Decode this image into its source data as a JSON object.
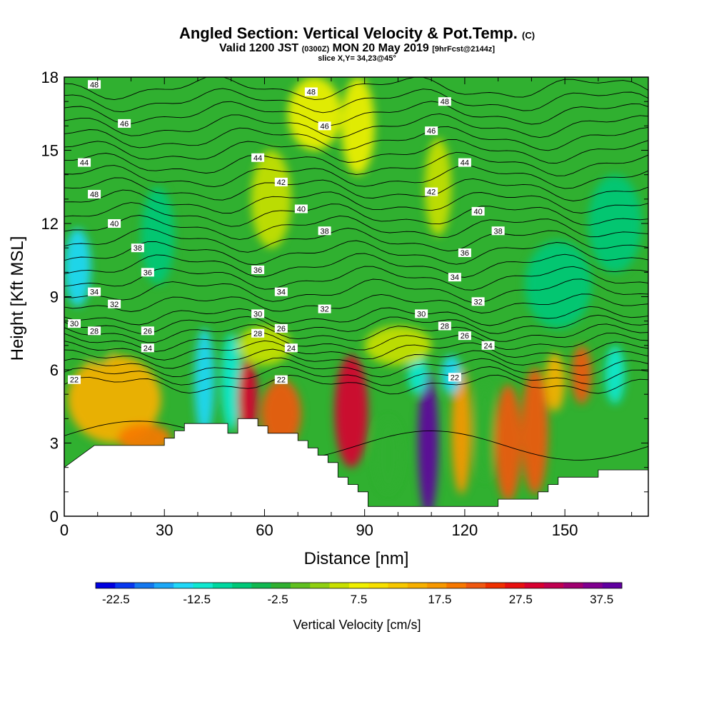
{
  "title": "Angled Section: Vertical Velocity & Pot.Temp.",
  "title_unit": "(C)",
  "subtitle_valid": "Valid 1200 JST",
  "subtitle_utc": "(0300Z)",
  "subtitle_date": "MON 20 May 2019",
  "subtitle_fcst": "[9hrFcst@2144z]",
  "slice": "slice X,Y= 34,23@45°",
  "chart_data": {
    "type": "heatmap",
    "xlabel": "Distance [nm]",
    "ylabel": "Height [Kft MSL]",
    "xlim": [
      0,
      175
    ],
    "ylim": [
      0,
      18
    ],
    "x_ticks": [
      0,
      30,
      60,
      90,
      120,
      150
    ],
    "y_ticks": [
      0,
      3,
      6,
      9,
      12,
      15,
      18
    ],
    "colorbar": {
      "title": "Vertical Velocity [cm/s]",
      "tick_labels": [
        "-22.5",
        "-12.5",
        "-2.5",
        "7.5",
        "17.5",
        "27.5",
        "37.5"
      ],
      "tick_values": [
        -22.5,
        -12.5,
        -2.5,
        7.5,
        17.5,
        27.5,
        37.5
      ],
      "range": [
        -25,
        40
      ],
      "colors": [
        "#0000e0",
        "#0838f0",
        "#1478f0",
        "#1ca8f8",
        "#20d8f8",
        "#10e8d0",
        "#00d8a0",
        "#00c878",
        "#10b850",
        "#30b030",
        "#60c020",
        "#90d010",
        "#c8e000",
        "#f0f000",
        "#f8e000",
        "#f8c800",
        "#f8b000",
        "#f89800",
        "#f87800",
        "#f05810",
        "#f03000",
        "#e81010",
        "#d80030",
        "#c00050",
        "#a00070",
        "#800090",
        "#6000a0"
      ]
    },
    "terrain": [
      [
        0,
        2.0
      ],
      [
        3,
        2.3
      ],
      [
        6,
        2.6
      ],
      [
        9,
        2.9
      ],
      [
        30,
        2.9
      ],
      [
        30,
        3.2
      ],
      [
        33,
        3.2
      ],
      [
        33,
        3.5
      ],
      [
        36,
        3.5
      ],
      [
        36,
        3.8
      ],
      [
        49,
        3.8
      ],
      [
        49,
        3.4
      ],
      [
        52,
        3.4
      ],
      [
        52,
        4.0
      ],
      [
        58,
        4.0
      ],
      [
        58,
        3.7
      ],
      [
        61,
        3.7
      ],
      [
        61,
        3.4
      ],
      [
        70,
        3.4
      ],
      [
        70,
        3.1
      ],
      [
        73,
        3.1
      ],
      [
        73,
        2.8
      ],
      [
        76,
        2.8
      ],
      [
        76,
        2.5
      ],
      [
        79,
        2.5
      ],
      [
        79,
        2.2
      ],
      [
        82,
        2.2
      ],
      [
        82,
        1.6
      ],
      [
        85,
        1.6
      ],
      [
        85,
        1.3
      ],
      [
        88,
        1.3
      ],
      [
        88,
        1.0
      ],
      [
        91,
        1.0
      ],
      [
        91,
        0.4
      ],
      [
        130,
        0.4
      ],
      [
        130,
        0.7
      ],
      [
        142,
        0.7
      ],
      [
        142,
        1.0
      ],
      [
        145,
        1.0
      ],
      [
        145,
        1.3
      ],
      [
        148,
        1.3
      ],
      [
        148,
        1.6
      ],
      [
        160,
        1.6
      ],
      [
        160,
        1.9
      ],
      [
        175,
        1.9
      ]
    ],
    "vv_cells": [
      {
        "x": 4,
        "y": 10.2,
        "rx": 4,
        "ry": 1.6,
        "v": -15
      },
      {
        "x": 42,
        "y": 5.5,
        "rx": 3,
        "ry": 2.2,
        "v": -14
      },
      {
        "x": 50,
        "y": 5.5,
        "rx": 3,
        "ry": 2.0,
        "v": -12
      },
      {
        "x": 15,
        "y": 4.8,
        "rx": 14,
        "ry": 1.8,
        "v": 15
      },
      {
        "x": 24,
        "y": 3.2,
        "rx": 8,
        "ry": 0.6,
        "v": 20
      },
      {
        "x": 55,
        "y": 4.8,
        "rx": 3,
        "ry": 1.6,
        "v": 30
      },
      {
        "x": 65,
        "y": 4.2,
        "rx": 6,
        "ry": 1.4,
        "v": 22
      },
      {
        "x": 86,
        "y": 4.3,
        "rx": 5,
        "ry": 2.3,
        "v": 28
      },
      {
        "x": 97,
        "y": 2.5,
        "rx": 4,
        "ry": 1.5,
        "v": -3
      },
      {
        "x": 109,
        "y": 3.0,
        "rx": 3,
        "ry": 3.0,
        "v": 38
      },
      {
        "x": 119,
        "y": 3.5,
        "rx": 3,
        "ry": 2.6,
        "v": 18
      },
      {
        "x": 126,
        "y": 3.5,
        "rx": 3,
        "ry": 2.0,
        "v": -3
      },
      {
        "x": 133,
        "y": 3.0,
        "rx": 4,
        "ry": 2.4,
        "v": 22
      },
      {
        "x": 141,
        "y": 3.5,
        "rx": 4,
        "ry": 2.6,
        "v": 22
      },
      {
        "x": 155,
        "y": 5.8,
        "rx": 3,
        "ry": 1.2,
        "v": 22
      },
      {
        "x": 147,
        "y": 5.5,
        "rx": 3,
        "ry": 1.2,
        "v": 15
      },
      {
        "x": 165,
        "y": 5.8,
        "rx": 3,
        "ry": 1.2,
        "v": -12
      },
      {
        "x": 116,
        "y": 5.8,
        "rx": 3,
        "ry": 0.8,
        "v": -14
      },
      {
        "x": 106,
        "y": 5.8,
        "rx": 3,
        "ry": 0.8,
        "v": -12
      },
      {
        "x": 75,
        "y": 16.5,
        "rx": 8,
        "ry": 1.5,
        "v": 8
      },
      {
        "x": 88,
        "y": 16.0,
        "rx": 5,
        "ry": 2.0,
        "v": 8
      },
      {
        "x": 112,
        "y": 13.5,
        "rx": 4,
        "ry": 2.0,
        "v": 6
      },
      {
        "x": 62,
        "y": 13.0,
        "rx": 6,
        "ry": 2.0,
        "v": 6
      },
      {
        "x": 28,
        "y": 11.5,
        "rx": 5,
        "ry": 2.0,
        "v": -7
      },
      {
        "x": 148,
        "y": 9.5,
        "rx": 10,
        "ry": 1.8,
        "v": -7
      },
      {
        "x": 165,
        "y": 12.0,
        "rx": 8,
        "ry": 2.0,
        "v": -6
      },
      {
        "x": 10,
        "y": 7.0,
        "rx": 5,
        "ry": 0.8,
        "v": -3
      },
      {
        "x": 60,
        "y": 7.0,
        "rx": 8,
        "ry": 0.8,
        "v": 6
      },
      {
        "x": 100,
        "y": 7.0,
        "rx": 10,
        "ry": 0.8,
        "v": 6
      }
    ],
    "theta_labels": [
      {
        "x": 9,
        "y": 17.7,
        "text": "48"
      },
      {
        "x": 18,
        "y": 16.1,
        "text": "46"
      },
      {
        "x": 6,
        "y": 14.5,
        "text": "44"
      },
      {
        "x": 9,
        "y": 13.2,
        "text": "48"
      },
      {
        "x": 15,
        "y": 12.0,
        "text": "40"
      },
      {
        "x": 22,
        "y": 11.0,
        "text": "38"
      },
      {
        "x": 25,
        "y": 10.0,
        "text": "36"
      },
      {
        "x": 9,
        "y": 9.2,
        "text": "34"
      },
      {
        "x": 15,
        "y": 8.7,
        "text": "32"
      },
      {
        "x": 3,
        "y": 7.9,
        "text": "30"
      },
      {
        "x": 9,
        "y": 7.6,
        "text": "28"
      },
      {
        "x": 25,
        "y": 7.6,
        "text": "26"
      },
      {
        "x": 25,
        "y": 6.9,
        "text": "24"
      },
      {
        "x": 3,
        "y": 5.6,
        "text": "22"
      },
      {
        "x": 74,
        "y": 17.4,
        "text": "48"
      },
      {
        "x": 78,
        "y": 16.0,
        "text": "46"
      },
      {
        "x": 58,
        "y": 14.7,
        "text": "44"
      },
      {
        "x": 65,
        "y": 13.7,
        "text": "42"
      },
      {
        "x": 71,
        "y": 12.6,
        "text": "40"
      },
      {
        "x": 78,
        "y": 11.7,
        "text": "38"
      },
      {
        "x": 58,
        "y": 10.1,
        "text": "36"
      },
      {
        "x": 65,
        "y": 9.2,
        "text": "34"
      },
      {
        "x": 78,
        "y": 8.5,
        "text": "32"
      },
      {
        "x": 58,
        "y": 8.3,
        "text": "30"
      },
      {
        "x": 58,
        "y": 7.5,
        "text": "28"
      },
      {
        "x": 65,
        "y": 7.7,
        "text": "26"
      },
      {
        "x": 68,
        "y": 6.9,
        "text": "24"
      },
      {
        "x": 65,
        "y": 5.6,
        "text": "22"
      },
      {
        "x": 114,
        "y": 17.0,
        "text": "48"
      },
      {
        "x": 110,
        "y": 15.8,
        "text": "46"
      },
      {
        "x": 120,
        "y": 14.5,
        "text": "44"
      },
      {
        "x": 110,
        "y": 13.3,
        "text": "42"
      },
      {
        "x": 124,
        "y": 12.5,
        "text": "40"
      },
      {
        "x": 130,
        "y": 11.7,
        "text": "38"
      },
      {
        "x": 120,
        "y": 10.8,
        "text": "36"
      },
      {
        "x": 117,
        "y": 9.8,
        "text": "34"
      },
      {
        "x": 124,
        "y": 8.8,
        "text": "32"
      },
      {
        "x": 107,
        "y": 8.3,
        "text": "30"
      },
      {
        "x": 114,
        "y": 7.8,
        "text": "28"
      },
      {
        "x": 120,
        "y": 7.4,
        "text": "26"
      },
      {
        "x": 127,
        "y": 7.0,
        "text": "24"
      },
      {
        "x": 117,
        "y": 5.7,
        "text": "22"
      }
    ],
    "theta_levels": [
      22,
      24,
      26,
      28,
      30,
      32,
      34,
      36,
      38,
      40,
      42,
      44,
      46,
      48
    ]
  }
}
